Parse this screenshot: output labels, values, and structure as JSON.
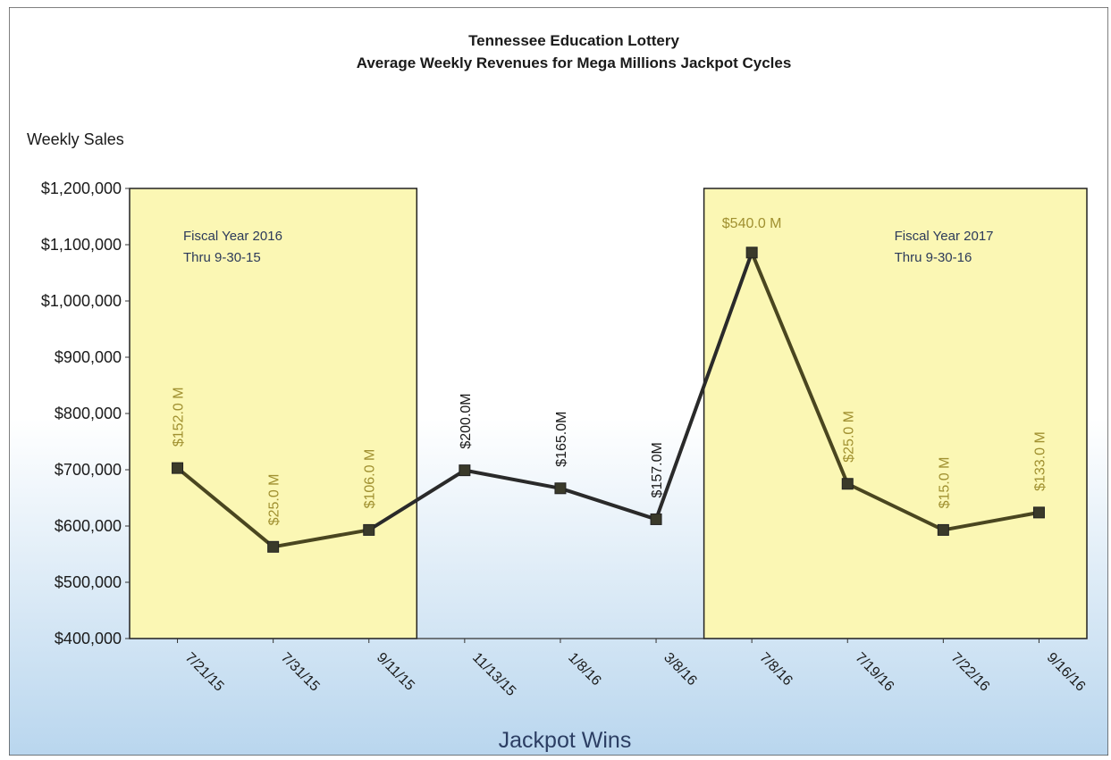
{
  "chart_data": {
    "type": "line",
    "title": "Tennessee Education Lottery",
    "subtitle": "Average Weekly Revenues for Mega Millions Jackpot Cycles",
    "ylabel": "Weekly Sales",
    "xlabel": "Jackpot Wins",
    "ylim": [
      400000,
      1200000
    ],
    "y_ticks": [
      400000,
      500000,
      600000,
      700000,
      800000,
      900000,
      1000000,
      1100000,
      1200000
    ],
    "y_tick_labels": [
      "$400,000",
      "$500,000",
      "$600,000",
      "$700,000",
      "$800,000",
      "$900,000",
      "$1,000,000",
      "$1,100,000",
      "$1,200,000"
    ],
    "categories": [
      "7/21/15",
      "7/31/15",
      "9/11/15",
      "11/13/15",
      "1/8/16",
      "3/8/16",
      "7/8/16",
      "7/19/16",
      "7/22/16",
      "9/16/16"
    ],
    "values": [
      703000,
      563000,
      593000,
      699000,
      667000,
      612000,
      1086000,
      675000,
      593000,
      624000
    ],
    "data_labels": [
      "$152.0 M",
      "$25.0 M",
      "$106.0 M",
      "$200.0M",
      "$165.0M",
      "$157.0M",
      "$540.0 M",
      "$25.0 M",
      "$15.0 M",
      "$133.0 M"
    ],
    "grid": false,
    "legend": "none",
    "regions": [
      {
        "start_index": 0,
        "end_index": 2,
        "label_line1": "Fiscal Year 2016",
        "label_line2": "Thru 9-30-15",
        "color": "#fbf7b4"
      },
      {
        "start_index": 6,
        "end_index": 9,
        "label_line1": "Fiscal Year 2017",
        "label_line2": "Thru 9-30-16",
        "color": "#fbf7b4"
      }
    ],
    "colors": {
      "line": "#2a2a2a",
      "line_in_region": "#4a4620",
      "label_in_region": "#a09030",
      "label_outside": "#1a1a1a",
      "marker": "#3a3a2a",
      "region_text": "#2c3a5a",
      "background_top": "#ffffff",
      "background_bottom": "#b9d6ee"
    }
  }
}
